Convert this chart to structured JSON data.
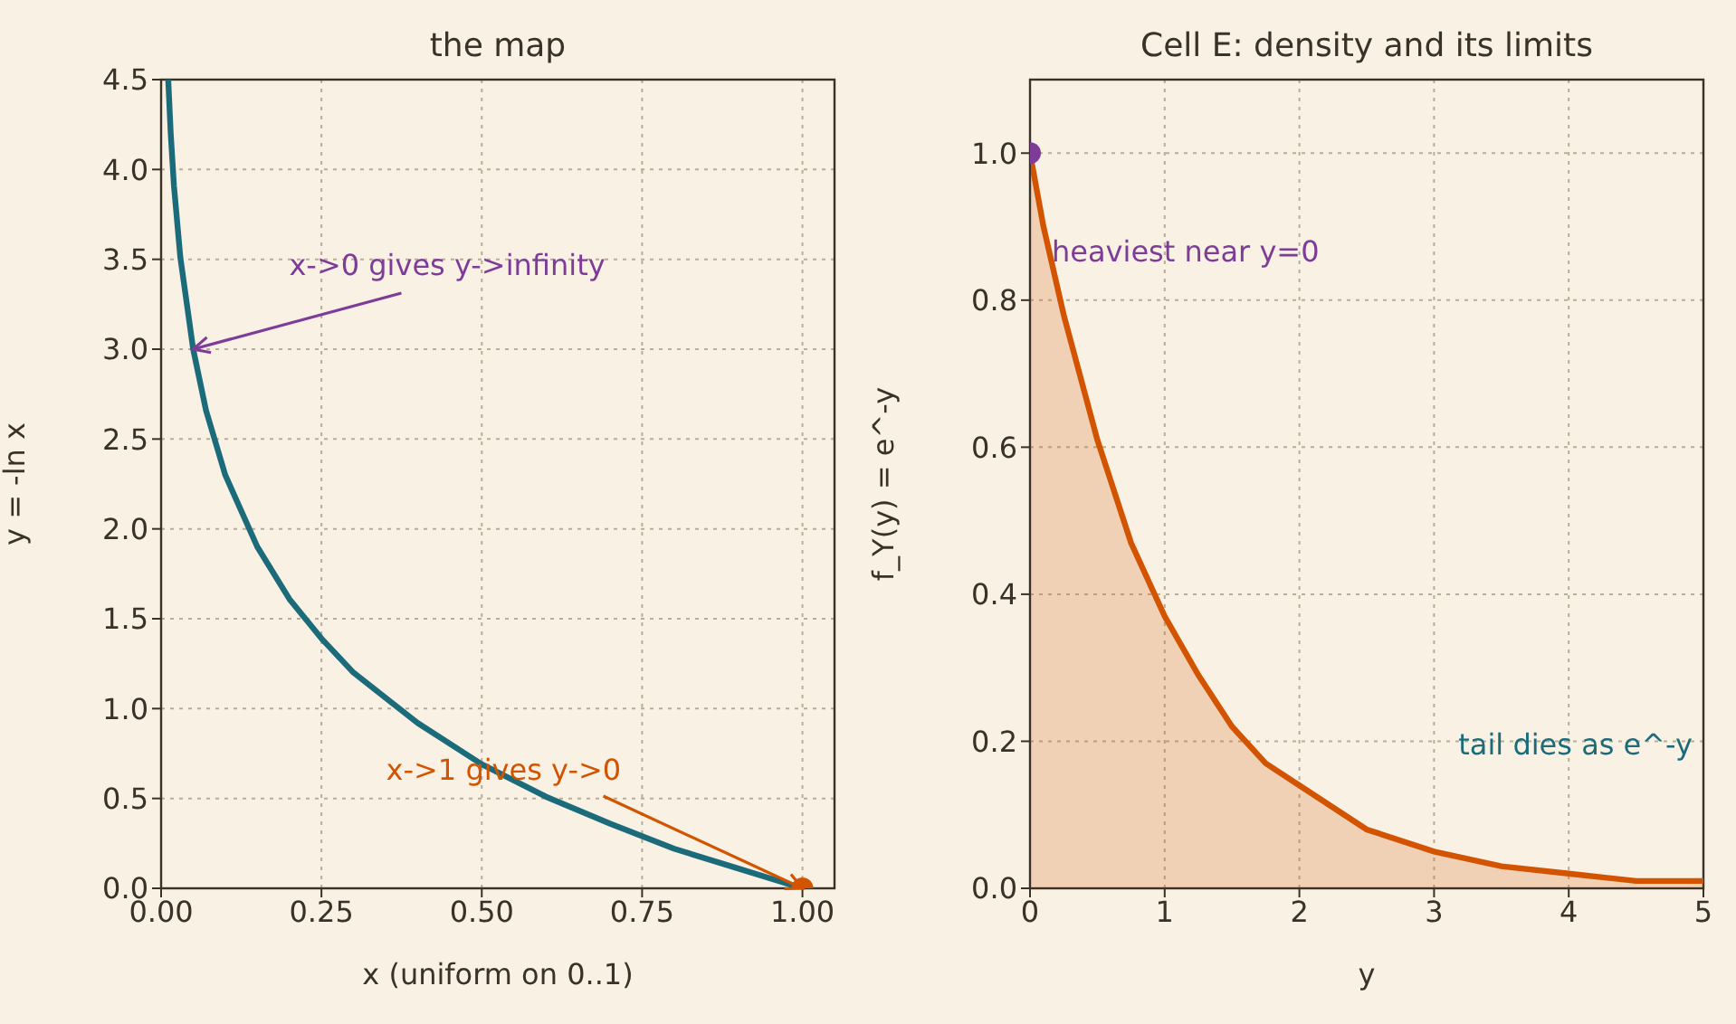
{
  "chart_data": [
    {
      "type": "line",
      "title": "the map",
      "xlabel": "x  (uniform on 0..1)",
      "ylabel": "y = -ln x",
      "xlim": [
        0,
        1.05
      ],
      "ylim": [
        0,
        4.5
      ],
      "xticks": [
        {
          "value": 0,
          "label": "0.00"
        },
        0.25,
        {
          "value": 0.5,
          "label": "0.50"
        },
        0.75,
        {
          "value": 1,
          "label": "1.00"
        }
      ],
      "yticks": [
        {
          "value": 0,
          "label": "0.0"
        },
        0.5,
        {
          "value": 1,
          "label": "1.0"
        },
        1.5,
        {
          "value": 2,
          "label": "2.0"
        },
        2.5,
        {
          "value": 3,
          "label": "3.0"
        },
        3.5,
        {
          "value": 4,
          "label": "4.0"
        },
        4.5
      ],
      "grid": true,
      "series": [
        {
          "color": "#1b6b7a",
          "x": [
            0.0111,
            0.015,
            0.02,
            0.03,
            0.05,
            0.07,
            0.1,
            0.15,
            0.2,
            0.25,
            0.3,
            0.4,
            0.5,
            0.6,
            0.7,
            0.8,
            0.9,
            1.0
          ],
          "values": [
            4.5,
            4.2,
            3.91,
            3.51,
            3.0,
            2.66,
            2.3,
            1.9,
            1.61,
            1.39,
            1.2,
            0.92,
            0.69,
            0.51,
            0.36,
            0.22,
            0.11,
            0.0
          ]
        },
        {
          "type": "scatter",
          "color": "#d35400",
          "x": [
            1.0
          ],
          "values": [
            0.0
          ]
        }
      ],
      "annotations": [
        {
          "text": "x->0 gives y->infinity",
          "x": 0.05,
          "y": 3.0
        },
        {
          "text": "x->1 gives y->0",
          "x": 1.0,
          "y": 0.0
        }
      ]
    },
    {
      "type": "area",
      "title": "Cell E: density and its limits",
      "xlabel": "y",
      "ylabel": "f_Y(y) = e^-y",
      "xlim": [
        0,
        5
      ],
      "ylim": [
        0,
        1.1
      ],
      "xticks": [
        0,
        1,
        2,
        3,
        4,
        5
      ],
      "yticks": [
        {
          "value": 0,
          "label": "0.0"
        },
        0.2,
        0.4,
        0.6,
        0.8,
        {
          "value": 1,
          "label": "1.0"
        }
      ],
      "grid": true,
      "series": [
        {
          "color": "#d35400",
          "x": [
            0,
            0.1,
            0.25,
            0.5,
            0.75,
            1,
            1.25,
            1.5,
            1.75,
            2,
            2.5,
            3,
            3.5,
            4,
            4.5,
            5
          ],
          "values": [
            1.0,
            0.9,
            0.78,
            0.61,
            0.47,
            0.37,
            0.29,
            0.22,
            0.17,
            0.14,
            0.08,
            0.05,
            0.03,
            0.02,
            0.01,
            0.01
          ]
        },
        {
          "type": "scatter",
          "color": "#7d3c98",
          "x": [
            0
          ],
          "values": [
            1.0
          ]
        }
      ],
      "annotations": [
        {
          "text": "heaviest near y=0",
          "x": 0,
          "y": 1.0
        },
        "tail dies as e^-y"
      ]
    }
  ]
}
